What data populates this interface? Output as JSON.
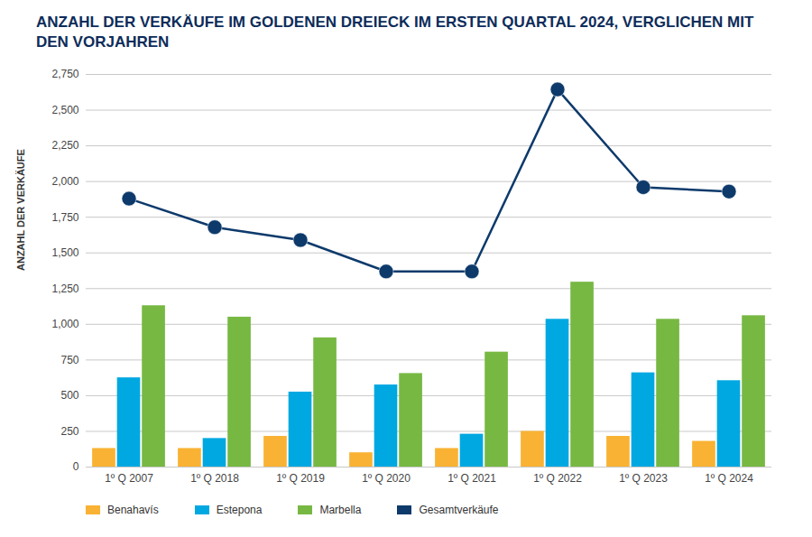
{
  "chart_data": {
    "type": "bar",
    "title": "ANZAHL DER VERKÄUFE IM GOLDENEN DREIECK IM ERSTEN QUARTAL 2024, VERGLICHEN MIT DEN VORJAHREN",
    "ylabel": "ANZAHL DER VERKÄUFE",
    "categories": [
      "1º Q 2007",
      "1º Q 2018",
      "1º Q 2019",
      "1º Q 2020",
      "1º Q 2021",
      "1º Q 2022",
      "1º Q 2023",
      "1º Q 2024"
    ],
    "series": [
      {
        "name": "Benahavís",
        "color": "#f9b233",
        "type": "bar",
        "values": [
          130,
          130,
          215,
          100,
          130,
          250,
          215,
          180
        ]
      },
      {
        "name": "Estepona",
        "color": "#00a8e1",
        "type": "bar",
        "values": [
          625,
          200,
          525,
          575,
          230,
          1035,
          660,
          605
        ]
      },
      {
        "name": "Marbella",
        "color": "#77b843",
        "type": "bar",
        "values": [
          1130,
          1050,
          905,
          655,
          805,
          1295,
          1035,
          1060
        ]
      },
      {
        "name": "Gesamtverkäufe",
        "color": "#0d3a6b",
        "type": "line",
        "marker": "circle",
        "values": [
          1880,
          1680,
          1590,
          1370,
          1370,
          2645,
          1960,
          1930
        ]
      }
    ],
    "ylim": [
      0,
      2750
    ],
    "yticks": [
      0,
      250,
      500,
      750,
      {
        "value": 1000,
        "label": "1,000"
      },
      {
        "value": 1250,
        "label": "1,250"
      },
      {
        "value": 1500,
        "label": "1,500"
      },
      {
        "value": 1750,
        "label": "1,750"
      },
      {
        "value": 2000,
        "label": "2,000"
      },
      {
        "value": 2250,
        "label": "2,250"
      },
      {
        "value": 2500,
        "label": "2,500"
      },
      {
        "value": 2750,
        "label": "2,750"
      }
    ],
    "grid": true,
    "legend": "bottom",
    "stacked": false
  }
}
